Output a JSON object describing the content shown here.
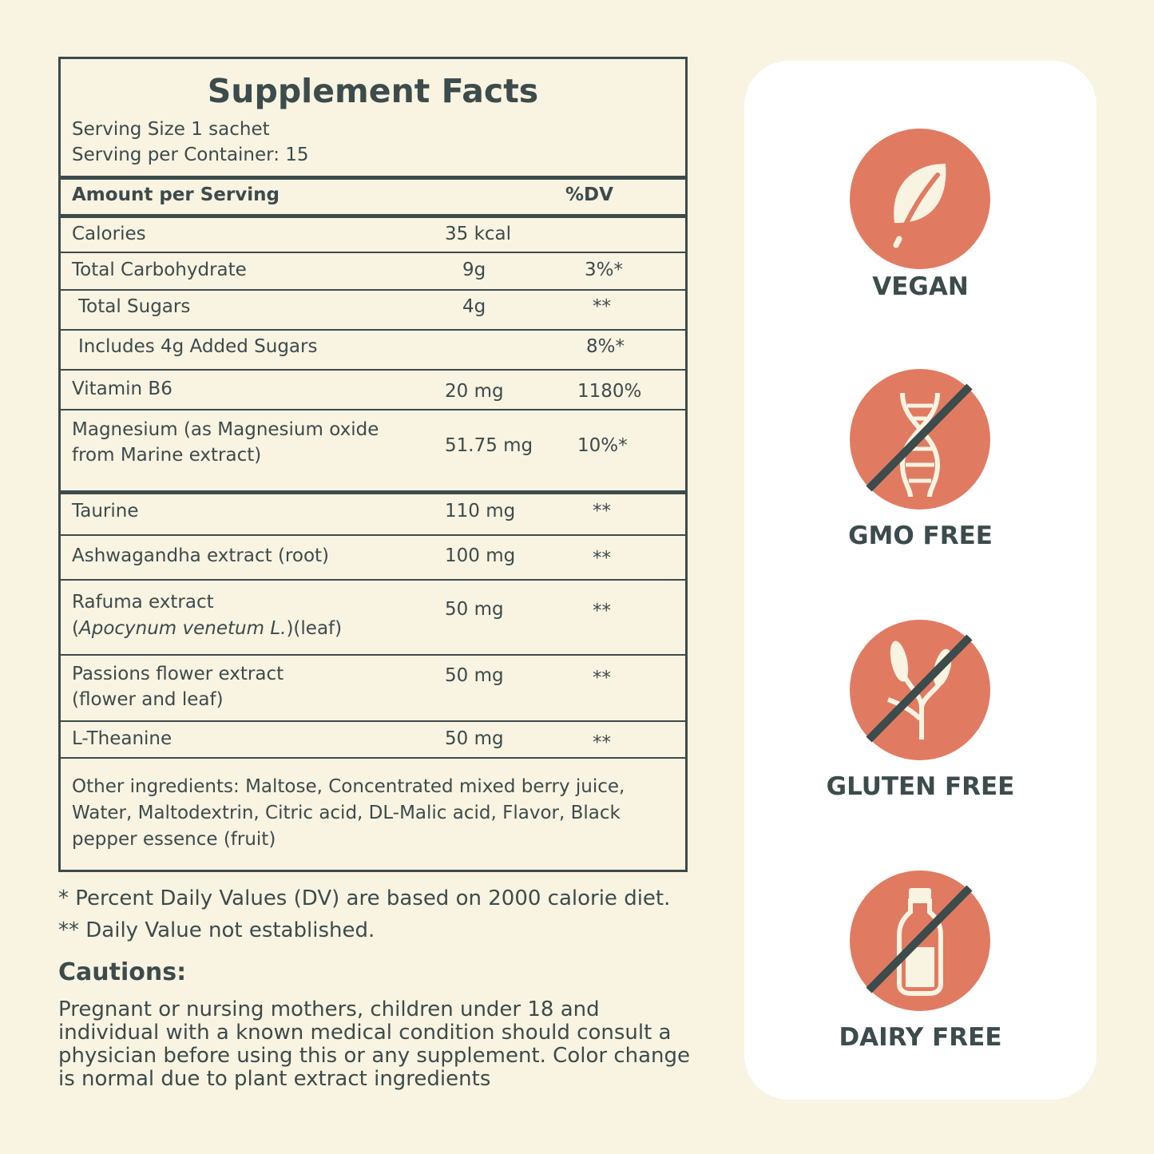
{
  "facts": {
    "title": "Supplement Facts",
    "serving_size": "Serving Size 1 sachet",
    "servings_per_container": "Serving per Container: 15",
    "header": {
      "amount": "Amount per Serving",
      "dv": "%DV"
    },
    "rows": [
      {
        "name": "Calories",
        "amount": "35 kcal",
        "dv": ""
      },
      {
        "name": "Total Carbohydrate",
        "amount": "9g",
        "dv": "3%*"
      },
      {
        "name": " Total Sugars",
        "amount": "4g",
        "dv": "**"
      },
      {
        "name": " Includes 4g Added Sugars",
        "amount": "",
        "dv": "8%*"
      },
      {
        "name": "Vitamin B6",
        "amount": "20 mg",
        "dv": "1180%"
      },
      {
        "name_line1": "Magnesium (as Magnesium oxide",
        "name_line2": "from Marine extract)",
        "amount": "51.75 mg",
        "dv": "10%*"
      },
      {
        "name": "Taurine",
        "amount": "110 mg",
        "dv": "**"
      },
      {
        "name": "Ashwagandha extract (root)",
        "amount": "100 mg",
        "dv": "**"
      },
      {
        "name_line1": "Rafuma extract",
        "name_line2_italic": "Apocynum venetum L.",
        "name_line2_suffix": ")(leaf)",
        "amount": "50 mg",
        "dv": "**"
      },
      {
        "name_line1": "Passions flower extract",
        "name_line2": "(flower and leaf)",
        "amount": "50 mg",
        "dv": "**"
      },
      {
        "name": "L-Theanine",
        "amount": "50 mg",
        "dv": "**"
      }
    ],
    "other_ingredients": "Other ingredients: Maltose, Concentrated mixed berry juice, Water, Maltodextrin, Citric acid, DL-Malic acid, Flavor, Black pepper essence (fruit)"
  },
  "notes": {
    "note1": "* Percent Daily Values (DV) are based on 2000 calorie diet.",
    "note2": "** Daily Value not established."
  },
  "cautions": {
    "title": "Cautions:",
    "body": "Pregnant or nursing mothers, children under 18 and individual with a known medical condition should consult a physician before using this or any supplement. Color change is normal due to plant extract ingredients"
  },
  "badges": [
    {
      "label": "VEGAN",
      "icon": "leaf-icon"
    },
    {
      "label": "GMO FREE",
      "icon": "dna-crossed-icon"
    },
    {
      "label": "GLUTEN FREE",
      "icon": "wheat-crossed-icon"
    },
    {
      "label": "DAIRY FREE",
      "icon": "milk-bottle-crossed-icon"
    }
  ],
  "colors": {
    "background": "#f9f3e2",
    "text": "#3c4b4b",
    "badge": "#e07b62",
    "icon": "#f9f3e2"
  }
}
